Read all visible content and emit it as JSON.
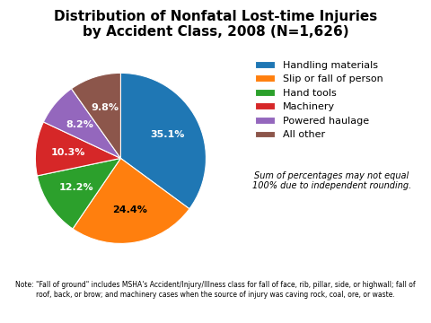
{
  "chart_data": {
    "type": "pie",
    "title": "Distribution of Nonfatal Lost-time Injuries\nby Accident Class, 2008 (N=1,626)",
    "categories": [
      "Handling materials",
      "Slip or fall of person",
      "Hand tools",
      "Machinery",
      "Powered haulage",
      "All other"
    ],
    "values": [
      35.1,
      24.4,
      12.2,
      10.3,
      8.2,
      9.8
    ],
    "value_labels": [
      "35.1%",
      "24.4%",
      "12.2%",
      "10.3%",
      "8.2%",
      "9.8%"
    ],
    "data_labels": true,
    "legend": "upper left",
    "annotations": [
      "Sum of percentages may not equal\n100% due to independent rounding.",
      "Note: \"Fall of ground\" includes MSHA's Accident/Injury/Illness class for fall of face, rib, pillar, side, or highwall; fall of\nroof, back, or brow; and machinery cases when the source of injury was caving rock, coal, ore, or waste."
    ]
  }
}
